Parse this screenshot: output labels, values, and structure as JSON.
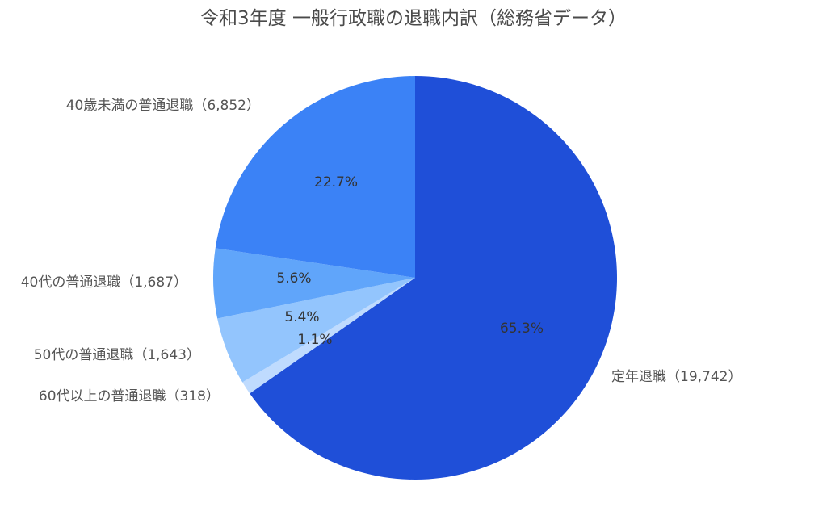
{
  "chart_data": {
    "type": "pie",
    "title": "令和3年度 一般行政職の退職内訳（総務省データ）",
    "slices": [
      {
        "label": "定年退職（19,742）",
        "value": 19742,
        "percent_label": "65.3%",
        "color": "#1f4fd8"
      },
      {
        "label": "60代以上の普通退職（318）",
        "value": 318,
        "percent_label": "1.1%",
        "color": "#bfdbfe"
      },
      {
        "label": "50代の普通退職（1,643）",
        "value": 1643,
        "percent_label": "5.4%",
        "color": "#93c5fd"
      },
      {
        "label": "40代の普通退職（1,687）",
        "value": 1687,
        "percent_label": "5.6%",
        "color": "#60a5fa"
      },
      {
        "label": "40歳未満の普通退職（6,852）",
        "value": 6852,
        "percent_label": "22.7%",
        "color": "#3b82f6"
      }
    ]
  }
}
